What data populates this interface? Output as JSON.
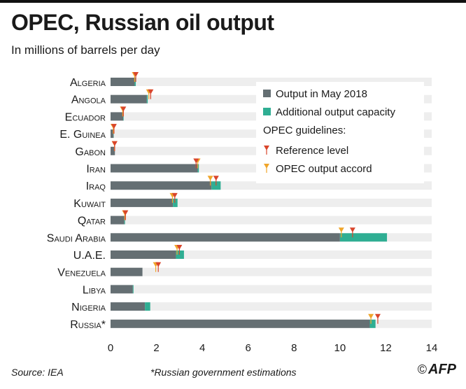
{
  "title": "OPEC, Russian oil output",
  "subtitle": "In millions of barrels per day",
  "source": "Source: IEA",
  "footnote": "*Russian government estimations",
  "logo": {
    "copyright": "©",
    "text": "AFP"
  },
  "colors": {
    "output": "#656f73",
    "capacity": "#2fae93",
    "track": "#eeeeee",
    "reference": "#d9452b",
    "accord": "#f0a52a"
  },
  "legend": {
    "output": "Output in May 2018",
    "capacity": "Additional output capacity",
    "guidelines": "OPEC guidelines:",
    "reference": "Reference level",
    "accord": "OPEC output accord"
  },
  "chart_data": {
    "type": "bar",
    "orientation": "horizontal",
    "stacked": true,
    "title": "OPEC, Russian oil output",
    "subtitle": "In millions of barrels per day",
    "xlim": [
      0,
      14
    ],
    "xticks": [
      0,
      2,
      4,
      6,
      8,
      10,
      12,
      14
    ],
    "legend_position": "top-right",
    "categories": [
      "Algeria",
      "Angola",
      "Ecuador",
      "E. Guinea",
      "Gabon",
      "Iran",
      "Iraq",
      "Kuwait",
      "Qatar",
      "Saudi Arabia",
      "U.A.E.",
      "Venezuela",
      "Libya",
      "Nigeria",
      "Russia*"
    ],
    "series": [
      {
        "name": "Output in May 2018",
        "values": [
          1.05,
          1.58,
          0.55,
          0.13,
          0.19,
          3.8,
          4.4,
          2.72,
          0.6,
          10.0,
          2.85,
          1.39,
          0.97,
          1.5,
          11.3
        ]
      },
      {
        "name": "Additional output capacity",
        "values": [
          0.05,
          0.04,
          0.02,
          0.01,
          0.0,
          0.05,
          0.4,
          0.2,
          0.03,
          2.05,
          0.35,
          0.0,
          0.03,
          0.23,
          0.25
        ]
      }
    ],
    "reference_level": [
      1.1,
      1.75,
      0.56,
      0.15,
      0.18,
      3.73,
      4.6,
      2.8,
      0.65,
      10.55,
      3.0,
      2.08,
      null,
      null,
      11.65
    ],
    "accord_level": [
      1.05,
      1.67,
      0.53,
      0.12,
      0.17,
      3.8,
      4.35,
      2.7,
      0.62,
      10.06,
      2.9,
      1.97,
      null,
      null,
      11.35
    ]
  }
}
